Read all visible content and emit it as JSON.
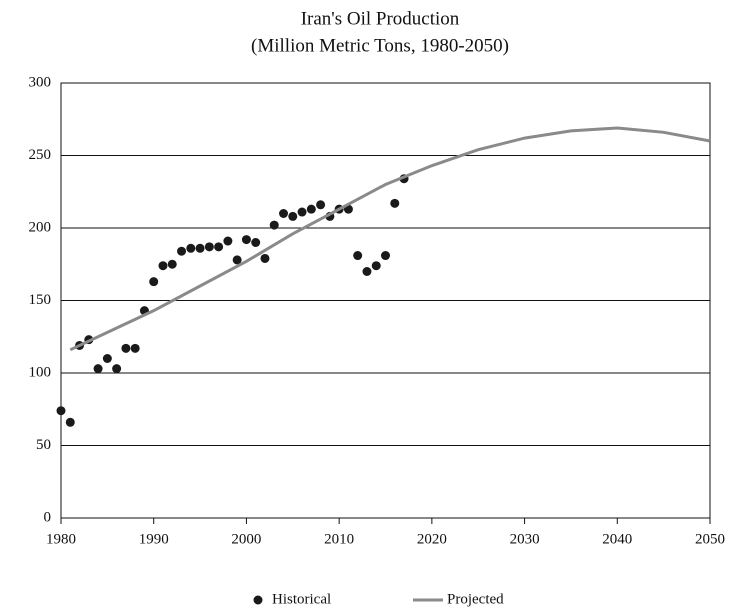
{
  "chart_data": {
    "type": "scatter",
    "title": "Iran's Oil Production",
    "subtitle": "(Million Metric Tons, 1980-2050)",
    "xlim": [
      1980,
      2050
    ],
    "xticks": [
      1980,
      1990,
      2000,
      2010,
      2020,
      2030,
      2040,
      2050
    ],
    "ylim": [
      0,
      300
    ],
    "yticks": [
      0,
      50,
      100,
      150,
      200,
      250,
      300
    ],
    "grid": true,
    "legend": "bottom",
    "series": [
      {
        "name": "Historical",
        "mode": "markers",
        "color": "#1a1a1a",
        "x": [
          1980,
          1981,
          1982,
          1983,
          1984,
          1985,
          1986,
          1987,
          1988,
          1989,
          1990,
          1991,
          1992,
          1993,
          1994,
          1995,
          1996,
          1997,
          1998,
          1999,
          2000,
          2001,
          2002,
          2003,
          2004,
          2005,
          2006,
          2007,
          2008,
          2009,
          2010,
          2011,
          2012,
          2013,
          2014,
          2015,
          2016,
          2017
        ],
        "values": [
          74,
          66,
          119,
          123,
          103,
          110,
          103,
          117,
          117,
          143,
          163,
          174,
          175,
          184,
          186,
          186,
          187,
          187,
          191,
          178,
          192,
          190,
          179,
          202,
          210,
          208,
          211,
          213,
          216,
          208,
          213,
          213,
          181,
          170,
          174,
          181,
          217,
          234
        ]
      },
      {
        "name": "Projected",
        "mode": "line",
        "color": "#8a8a8a",
        "x": [
          1981,
          1985,
          1990,
          1995,
          2000,
          2005,
          2010,
          2015,
          2020,
          2025,
          2030,
          2035,
          2040,
          2045,
          2050
        ],
        "values": [
          116,
          128,
          143,
          160,
          177,
          196,
          213,
          230,
          243,
          254,
          262,
          267,
          269,
          266,
          260
        ]
      }
    ]
  }
}
